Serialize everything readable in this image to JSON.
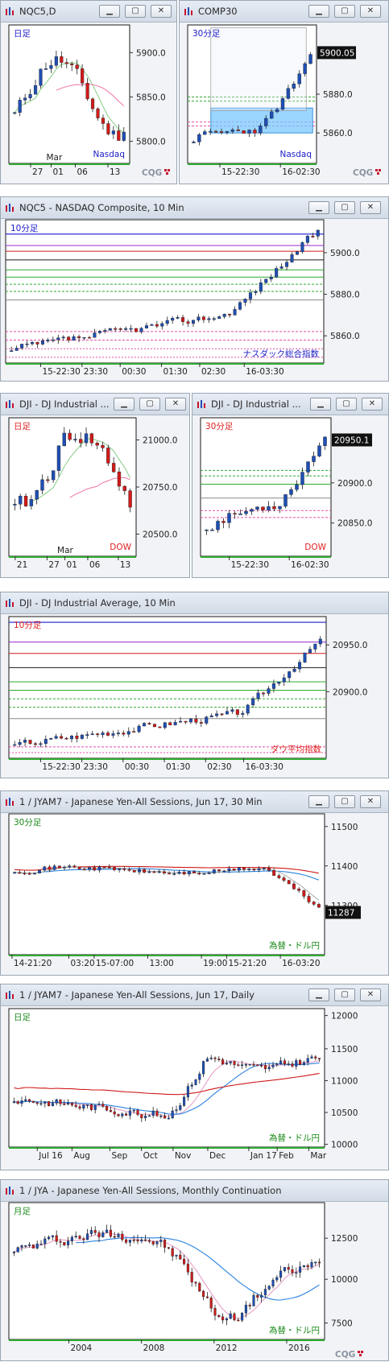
{
  "colors": {
    "up": "#1f4fb5",
    "down": "#d21a1a",
    "bg": "#ffffff",
    "frame": "#f1f3f6",
    "label_blue": "#1c1cc8",
    "label_red": "#e02020",
    "label_green": "#1a8a1a",
    "zone": "#7ac8ff",
    "logo_red": "#c8102e"
  },
  "logo": "CQG",
  "charts": [
    {
      "id": "c1",
      "title": "NQC5,D",
      "period": "日足",
      "period_color": "label_blue",
      "name": "Nasdaq",
      "name_color": "label_blue",
      "yticks": [
        "5900.0",
        "5850.0",
        "5800.0"
      ],
      "xticks": [
        "27",
        "01",
        "06",
        "13"
      ],
      "xsub": [
        "Mar"
      ],
      "seed": 11,
      "type": "bar"
    },
    {
      "id": "c2",
      "title": "COMP30",
      "period": "30分足",
      "period_color": "label_blue",
      "name": "Nasdaq",
      "name_color": "label_blue",
      "yticks": [
        "5880.0",
        "5860.0"
      ],
      "ytag": "5900.05",
      "xticks": [
        "15-22:30",
        "16-02:30"
      ],
      "seed": 23,
      "type": "bar"
    },
    {
      "id": "c3",
      "title": "NQC5 - NASDAQ Composite, 10 Min",
      "period": "10分足",
      "period_color": "label_blue",
      "name": "ナスダック総合指数",
      "name_color": "label_blue",
      "yticks": [
        "5900.0",
        "5880.0",
        "5860.0"
      ],
      "xticks": [
        "15-22:30",
        "23:30",
        "00:30",
        "01:30",
        "02:30",
        "16-03:30"
      ],
      "seed": 37,
      "type": "bar"
    },
    {
      "id": "c4",
      "title": "DJI - DJ Industrial ...",
      "period": "日足",
      "period_color": "label_red",
      "name": "DOW",
      "name_color": "label_red",
      "yticks": [
        "21000.0",
        "20750.0",
        "20500.0"
      ],
      "xticks": [
        "21",
        "27",
        "01",
        "06",
        "13"
      ],
      "xsub": [
        "Mar"
      ],
      "seed": 41,
      "type": "bar"
    },
    {
      "id": "c5",
      "title": "DJI - DJ Industrial ...",
      "period": "30分足",
      "period_color": "label_red",
      "name": "DOW",
      "name_color": "label_red",
      "yticks": [
        "20900.0",
        "20850.0"
      ],
      "ytag": "20950.1",
      "xticks": [
        "15-22:30",
        "16-02:30"
      ],
      "seed": 53,
      "type": "bar"
    },
    {
      "id": "c6",
      "title": "DJI - DJ Industrial Average, 10 Min",
      "period": "10分足",
      "period_color": "label_red",
      "name": "ダウ平均指数",
      "name_color": "label_red",
      "yticks": [
        "20950.0",
        "20900.0"
      ],
      "xticks": [
        "15-22:30",
        "23:30",
        "00:30",
        "01:30",
        "02:30",
        "16-03:30"
      ],
      "seed": 67,
      "type": "bar"
    },
    {
      "id": "c7",
      "title": "1 / JYAM7 - Japanese Yen-All Sessions, Jun 17, 30 Min",
      "period": "30分足",
      "period_color": "label_green",
      "name": "為替・ドル円",
      "name_color": "label_green",
      "yticks": [
        "11500",
        "11400",
        "11300"
      ],
      "ytag": "11287",
      "xticks": [
        "14-21:20",
        "03:20",
        "15-07:00",
        "13:00",
        "19:00",
        "15-21:20",
        "16-03:20"
      ],
      "seed": 71,
      "type": "bar"
    },
    {
      "id": "c8",
      "title": "1 / JYAM7 - Japanese Yen-All Sessions, Jun 17, Daily",
      "period": "日足",
      "period_color": "label_green",
      "name": "為替・ドル円",
      "name_color": "label_green",
      "yticks": [
        "12000",
        "11500",
        "11000",
        "10500",
        "10000"
      ],
      "xticks": [
        "Jul 16",
        "Aug",
        "Sep",
        "Oct",
        "Nov",
        "Dec",
        "Jan 17",
        "Feb",
        "Mar"
      ],
      "seed": 83,
      "type": "bar"
    },
    {
      "id": "c9",
      "title": "1 / JYA - Japanese Yen-All Sessions, Monthly Continuation",
      "period": "月足",
      "period_color": "label_green",
      "name": "為替・ドル円",
      "name_color": "label_green",
      "yticks": [
        "12500",
        "10000",
        "7500"
      ],
      "xticks": [
        "2004",
        "2008",
        "2012",
        "2016"
      ],
      "seed": 97,
      "type": "bar"
    }
  ]
}
